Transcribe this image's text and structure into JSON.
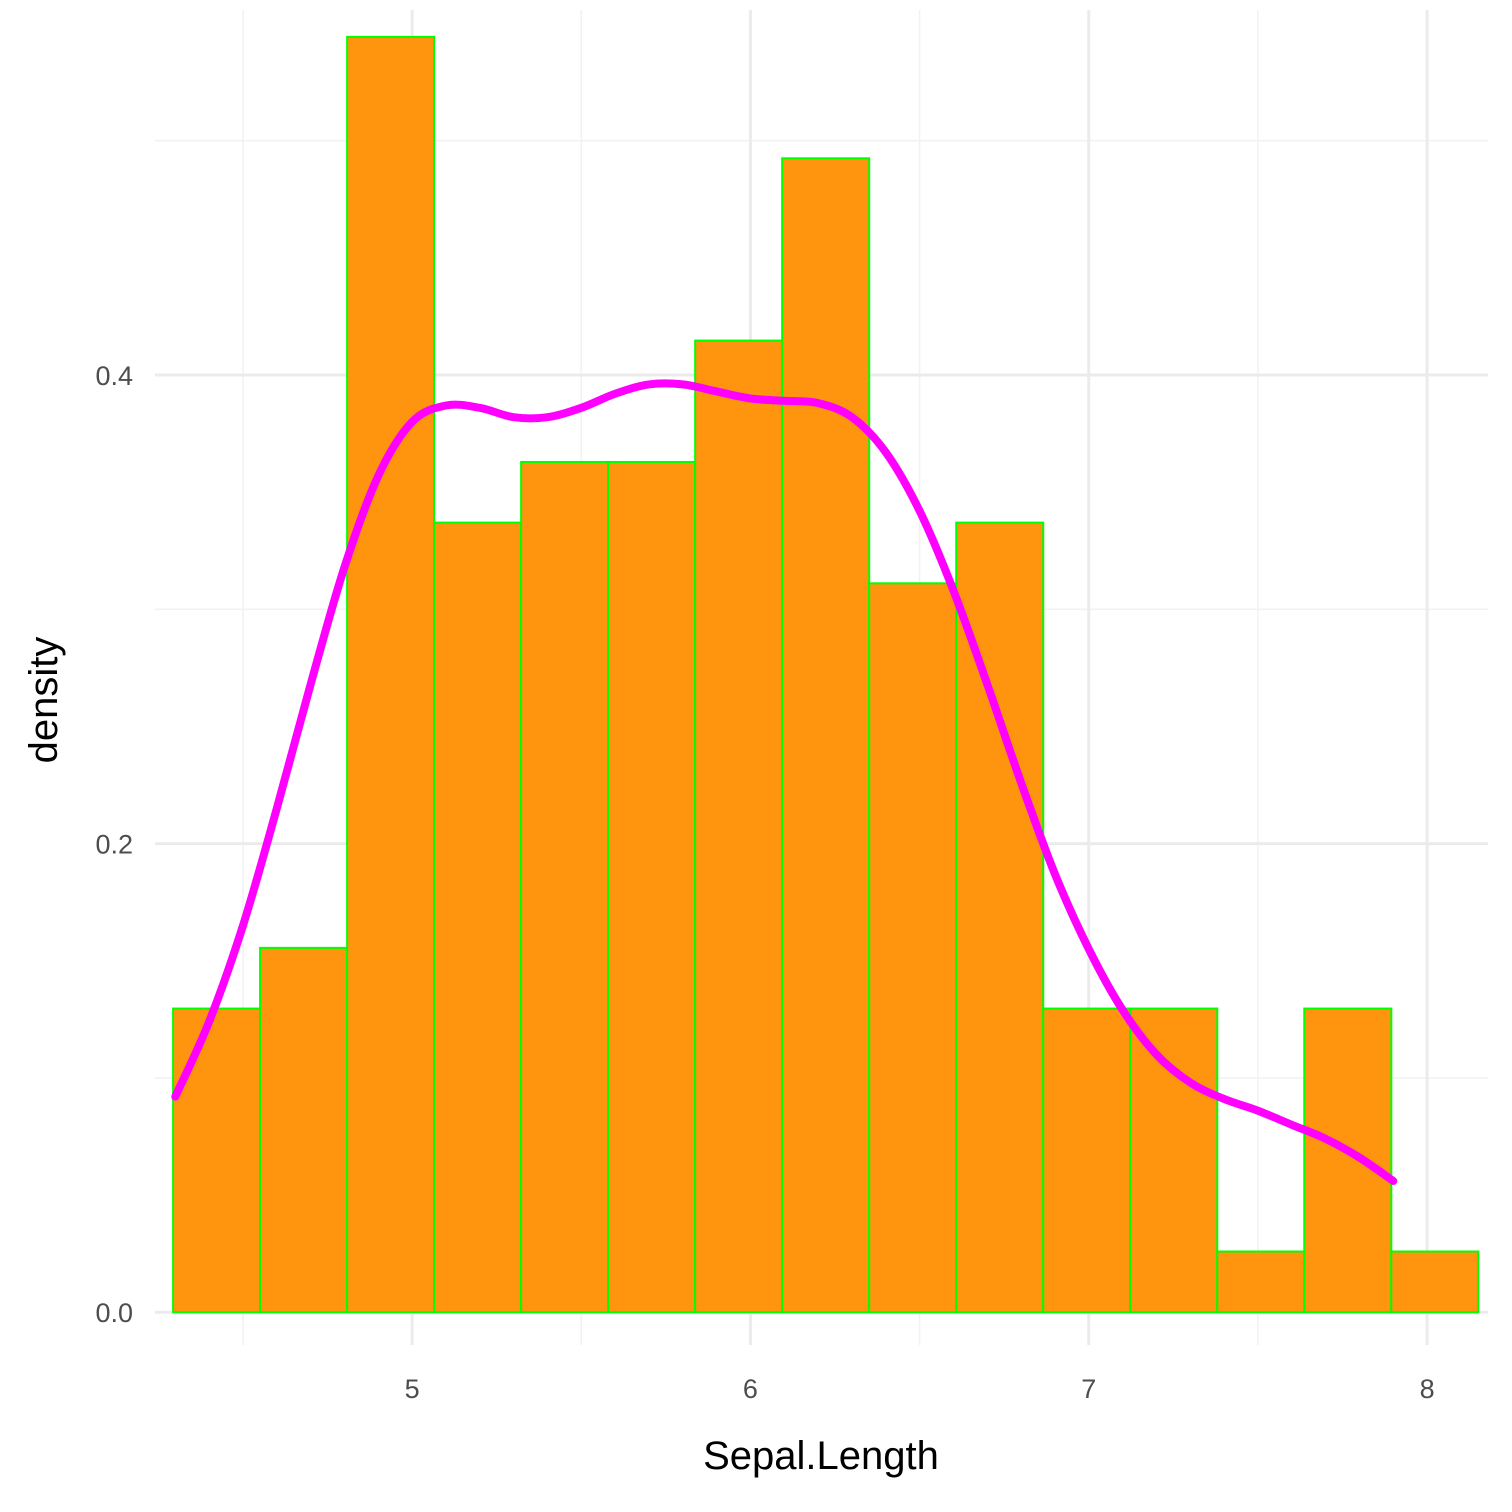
{
  "chart_data": {
    "type": "bar",
    "title": "",
    "xlabel": "Sepal.Length",
    "ylabel": "density",
    "xlim": [
      4.24,
      8.18
    ],
    "ylim": [
      -0.014,
      0.5558
    ],
    "x_ticks": [
      5,
      6,
      7,
      8
    ],
    "x_tick_labels": [
      "5",
      "6",
      "7",
      "8"
    ],
    "x_minor_ticks": [
      4.5,
      5.5,
      6.5,
      7.5
    ],
    "y_ticks": [
      0.0,
      0.2,
      0.4
    ],
    "y_tick_labels": [
      "0.0",
      "0.2",
      "0.4"
    ],
    "y_minor_ticks": [
      0.1,
      0.3,
      0.5
    ],
    "grid": true,
    "bins": [
      {
        "x0": 4.2935,
        "x1": 4.5507,
        "density": 0.1296
      },
      {
        "x0": 4.5507,
        "x1": 4.8079,
        "density": 0.1555
      },
      {
        "x0": 4.8079,
        "x1": 5.065,
        "density": 0.5443
      },
      {
        "x0": 5.065,
        "x1": 5.3222,
        "density": 0.337
      },
      {
        "x0": 5.3222,
        "x1": 5.5794,
        "density": 0.3629
      },
      {
        "x0": 5.5794,
        "x1": 5.8366,
        "density": 0.3629
      },
      {
        "x0": 5.8366,
        "x1": 6.0938,
        "density": 0.4147
      },
      {
        "x0": 6.0938,
        "x1": 6.351,
        "density": 0.4925
      },
      {
        "x0": 6.351,
        "x1": 6.6082,
        "density": 0.3111
      },
      {
        "x0": 6.6082,
        "x1": 6.8654,
        "density": 0.337
      },
      {
        "x0": 6.8654,
        "x1": 7.1226,
        "density": 0.1296
      },
      {
        "x0": 7.1226,
        "x1": 7.3798,
        "density": 0.1296
      },
      {
        "x0": 7.3798,
        "x1": 7.637,
        "density": 0.0259
      },
      {
        "x0": 7.637,
        "x1": 7.8942,
        "density": 0.1296
      },
      {
        "x0": 7.8942,
        "x1": 8.1514,
        "density": 0.0259
      }
    ],
    "density_curve": {
      "x": [
        4.3,
        4.4,
        4.5,
        4.6,
        4.7,
        4.8,
        4.9,
        5.0,
        5.1,
        5.2,
        5.3,
        5.4,
        5.5,
        5.6,
        5.7,
        5.8,
        5.9,
        6.0,
        6.1,
        6.2,
        6.3,
        6.4,
        6.5,
        6.6,
        6.7,
        6.8,
        6.9,
        7.0,
        7.1,
        7.2,
        7.3,
        7.4,
        7.5,
        7.6,
        7.7,
        7.8,
        7.9
      ],
      "y": [
        0.092,
        0.124,
        0.165,
        0.215,
        0.268,
        0.318,
        0.357,
        0.38,
        0.387,
        0.386,
        0.382,
        0.382,
        0.386,
        0.392,
        0.396,
        0.396,
        0.393,
        0.39,
        0.389,
        0.388,
        0.382,
        0.367,
        0.342,
        0.308,
        0.268,
        0.226,
        0.187,
        0.155,
        0.129,
        0.11,
        0.098,
        0.091,
        0.086,
        0.08,
        0.074,
        0.066,
        0.056
      ]
    },
    "colors": {
      "bar_fill": "#FF950E",
      "bar_stroke": "#00FF00",
      "curve": "#FF00FF",
      "grid_major": "#EBEBEB",
      "grid_minor": "#F2F2F2",
      "tick_text": "#4D4D4D",
      "axis_title": "#000000"
    }
  }
}
